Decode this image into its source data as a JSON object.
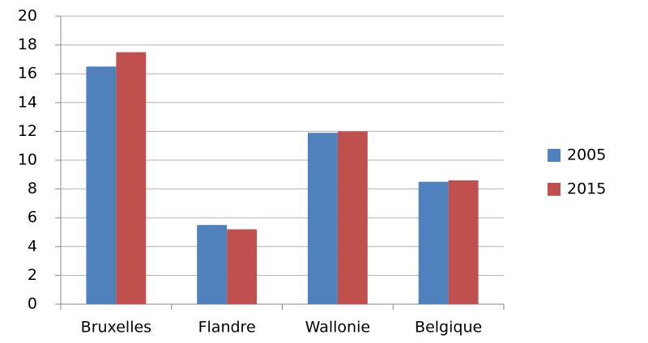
{
  "chart_data": {
    "type": "bar",
    "categories": [
      "Bruxelles",
      "Flandre",
      "Wallonie",
      "Belgique"
    ],
    "series": [
      {
        "name": "2005",
        "color": "#4f81bd",
        "values": [
          16.5,
          5.5,
          11.9,
          8.5
        ]
      },
      {
        "name": "2015",
        "color": "#c0504d",
        "values": [
          17.5,
          5.2,
          12.0,
          8.6
        ]
      }
    ],
    "ylim": [
      0,
      20
    ],
    "yticks": [
      0,
      2,
      4,
      6,
      8,
      10,
      12,
      14,
      16,
      18,
      20
    ],
    "grid": true,
    "legend": "right"
  }
}
